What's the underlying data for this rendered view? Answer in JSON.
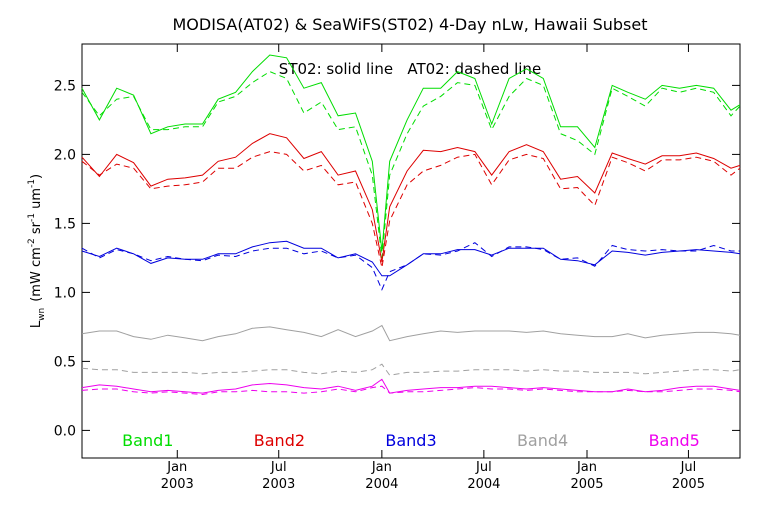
{
  "chart_data": {
    "type": "line",
    "title": "MODISA(AT02) & SeaWiFS(ST02) 4-Day nLw, Hawaii Subset",
    "subtitle": "ST02: solid line   AT02: dashed line",
    "xlabel": "",
    "ylabel": "L",
    "ylabel_sub": "wn",
    "ylabel_units": "(mW cm",
    "ylabel_units_sup1": "-2",
    "ylabel_units_mid": " sr",
    "ylabel_units_sup2": "-1",
    "ylabel_units_end": " um",
    "ylabel_units_sup3": "-1",
    "ylabel_units_close": ")",
    "ylim": [
      -0.2,
      2.8
    ],
    "xlim": [
      "2002-07-15",
      "2005-10-01"
    ],
    "grid": false,
    "yticks": [
      {
        "v": 0.0,
        "label": "0.0"
      },
      {
        "v": 0.5,
        "label": "0.5"
      },
      {
        "v": 1.0,
        "label": "1.0"
      },
      {
        "v": 1.5,
        "label": "1.5"
      },
      {
        "v": 2.0,
        "label": "2.0"
      },
      {
        "v": 2.5,
        "label": "2.5"
      }
    ],
    "xticks": [
      {
        "date": "2003-01-01",
        "month": "Jan",
        "year": "2003"
      },
      {
        "date": "2003-07-01",
        "month": "Jul",
        "year": "2003"
      },
      {
        "date": "2004-01-01",
        "month": "Jan",
        "year": "2004"
      },
      {
        "date": "2004-07-01",
        "month": "Jul",
        "year": "2004"
      },
      {
        "date": "2005-01-01",
        "month": "Jan",
        "year": "2005"
      },
      {
        "date": "2005-07-01",
        "month": "Jul",
        "year": "2005"
      }
    ],
    "x": [
      "2002-07-15",
      "2002-08-15",
      "2002-09-15",
      "2002-10-15",
      "2002-11-15",
      "2002-12-15",
      "2003-01-15",
      "2003-02-15",
      "2003-03-15",
      "2003-04-15",
      "2003-05-15",
      "2003-06-15",
      "2003-07-15",
      "2003-08-15",
      "2003-09-15",
      "2003-10-15",
      "2003-11-15",
      "2003-12-15",
      "2004-01-01",
      "2004-01-15",
      "2004-02-15",
      "2004-03-15",
      "2004-04-15",
      "2004-05-15",
      "2004-06-15",
      "2004-07-15",
      "2004-08-15",
      "2004-09-15",
      "2004-10-15",
      "2004-11-15",
      "2004-12-15",
      "2005-01-15",
      "2005-02-15",
      "2005-03-15",
      "2005-04-15",
      "2005-05-15",
      "2005-06-15",
      "2005-07-15",
      "2005-08-15",
      "2005-09-15",
      "2005-10-01"
    ],
    "series": [
      {
        "name": "Band1",
        "color": "#00dd00",
        "dash": false,
        "values": [
          2.48,
          2.25,
          2.48,
          2.43,
          2.15,
          2.2,
          2.22,
          2.22,
          2.4,
          2.45,
          2.6,
          2.72,
          2.7,
          2.48,
          2.52,
          2.28,
          2.3,
          1.95,
          1.3,
          1.95,
          2.25,
          2.48,
          2.48,
          2.6,
          2.55,
          2.22,
          2.55,
          2.62,
          2.55,
          2.2,
          2.2,
          2.05,
          2.5,
          2.45,
          2.4,
          2.5,
          2.48,
          2.5,
          2.48,
          2.32,
          2.36
        ]
      },
      {
        "name": "Band1",
        "color": "#00dd00",
        "dash": true,
        "values": [
          2.45,
          2.28,
          2.4,
          2.42,
          2.18,
          2.18,
          2.2,
          2.2,
          2.38,
          2.42,
          2.52,
          2.6,
          2.55,
          2.3,
          2.38,
          2.18,
          2.2,
          1.85,
          1.25,
          1.85,
          2.15,
          2.35,
          2.42,
          2.52,
          2.5,
          2.18,
          2.42,
          2.55,
          2.5,
          2.15,
          2.1,
          2.0,
          2.48,
          2.42,
          2.35,
          2.48,
          2.45,
          2.48,
          2.45,
          2.28,
          2.35
        ]
      },
      {
        "name": "Band2",
        "color": "#dd0000",
        "dash": false,
        "values": [
          1.98,
          1.84,
          2.0,
          1.94,
          1.77,
          1.82,
          1.83,
          1.85,
          1.95,
          1.98,
          2.08,
          2.15,
          2.12,
          1.97,
          2.02,
          1.85,
          1.88,
          1.6,
          1.22,
          1.62,
          1.88,
          2.03,
          2.02,
          2.05,
          2.02,
          1.85,
          2.02,
          2.07,
          2.02,
          1.82,
          1.84,
          1.72,
          2.01,
          1.97,
          1.93,
          1.99,
          1.99,
          2.01,
          1.97,
          1.9,
          1.92
        ]
      },
      {
        "name": "Band2",
        "color": "#dd0000",
        "dash": true,
        "values": [
          1.95,
          1.85,
          1.93,
          1.9,
          1.75,
          1.77,
          1.78,
          1.8,
          1.9,
          1.9,
          1.98,
          2.02,
          2.0,
          1.88,
          1.92,
          1.78,
          1.8,
          1.5,
          1.18,
          1.52,
          1.78,
          1.88,
          1.92,
          1.98,
          2.0,
          1.78,
          1.96,
          2.0,
          1.97,
          1.75,
          1.76,
          1.63,
          1.98,
          1.94,
          1.88,
          1.96,
          1.96,
          1.98,
          1.95,
          1.85,
          1.9
        ]
      },
      {
        "name": "Band3",
        "color": "#0000dd",
        "dash": false,
        "values": [
          1.3,
          1.26,
          1.32,
          1.28,
          1.21,
          1.25,
          1.24,
          1.24,
          1.28,
          1.28,
          1.33,
          1.36,
          1.37,
          1.32,
          1.32,
          1.25,
          1.28,
          1.22,
          1.12,
          1.12,
          1.2,
          1.28,
          1.28,
          1.31,
          1.31,
          1.27,
          1.32,
          1.32,
          1.32,
          1.24,
          1.23,
          1.2,
          1.3,
          1.29,
          1.27,
          1.29,
          1.3,
          1.31,
          1.3,
          1.29,
          1.28
        ]
      },
      {
        "name": "Band3",
        "color": "#0000dd",
        "dash": true,
        "values": [
          1.32,
          1.25,
          1.31,
          1.28,
          1.23,
          1.26,
          1.24,
          1.23,
          1.27,
          1.26,
          1.3,
          1.32,
          1.32,
          1.28,
          1.3,
          1.25,
          1.27,
          1.18,
          1.02,
          1.15,
          1.2,
          1.28,
          1.27,
          1.3,
          1.36,
          1.26,
          1.33,
          1.33,
          1.31,
          1.24,
          1.25,
          1.19,
          1.34,
          1.31,
          1.3,
          1.31,
          1.3,
          1.3,
          1.34,
          1.3,
          1.3
        ]
      },
      {
        "name": "Band4",
        "color": "#a0a0a0",
        "dash": false,
        "values": [
          0.7,
          0.72,
          0.72,
          0.68,
          0.66,
          0.69,
          0.67,
          0.65,
          0.68,
          0.7,
          0.74,
          0.75,
          0.73,
          0.71,
          0.68,
          0.73,
          0.68,
          0.72,
          0.76,
          0.65,
          0.68,
          0.7,
          0.72,
          0.71,
          0.72,
          0.72,
          0.72,
          0.71,
          0.72,
          0.7,
          0.69,
          0.68,
          0.68,
          0.7,
          0.67,
          0.69,
          0.7,
          0.71,
          0.71,
          0.7,
          0.69
        ]
      },
      {
        "name": "Band4",
        "color": "#a0a0a0",
        "dash": true,
        "values": [
          0.45,
          0.44,
          0.44,
          0.42,
          0.42,
          0.42,
          0.42,
          0.41,
          0.42,
          0.42,
          0.43,
          0.44,
          0.44,
          0.42,
          0.41,
          0.43,
          0.42,
          0.44,
          0.48,
          0.4,
          0.42,
          0.42,
          0.43,
          0.43,
          0.44,
          0.44,
          0.44,
          0.43,
          0.44,
          0.43,
          0.43,
          0.42,
          0.42,
          0.42,
          0.41,
          0.42,
          0.43,
          0.44,
          0.44,
          0.43,
          0.44
        ]
      },
      {
        "name": "Band5",
        "color": "#ee00ee",
        "dash": false,
        "values": [
          0.31,
          0.33,
          0.32,
          0.3,
          0.28,
          0.29,
          0.28,
          0.27,
          0.29,
          0.3,
          0.33,
          0.34,
          0.33,
          0.31,
          0.3,
          0.32,
          0.29,
          0.32,
          0.37,
          0.27,
          0.29,
          0.3,
          0.31,
          0.31,
          0.32,
          0.32,
          0.31,
          0.3,
          0.31,
          0.3,
          0.29,
          0.28,
          0.28,
          0.3,
          0.28,
          0.29,
          0.31,
          0.32,
          0.32,
          0.3,
          0.29
        ]
      },
      {
        "name": "Band5",
        "color": "#ee00ee",
        "dash": true,
        "values": [
          0.29,
          0.3,
          0.3,
          0.28,
          0.27,
          0.28,
          0.27,
          0.26,
          0.28,
          0.28,
          0.29,
          0.28,
          0.28,
          0.27,
          0.28,
          0.3,
          0.28,
          0.31,
          0.32,
          0.27,
          0.28,
          0.28,
          0.29,
          0.3,
          0.31,
          0.3,
          0.3,
          0.29,
          0.3,
          0.29,
          0.28,
          0.28,
          0.28,
          0.29,
          0.28,
          0.28,
          0.29,
          0.3,
          0.3,
          0.29,
          0.28
        ]
      }
    ],
    "legend": [
      {
        "label": "Band1",
        "color": "#00dd00"
      },
      {
        "label": "Band2",
        "color": "#dd0000"
      },
      {
        "label": "Band3",
        "color": "#0000dd"
      },
      {
        "label": "Band4",
        "color": "#a0a0a0"
      },
      {
        "label": "Band5",
        "color": "#ee00ee"
      }
    ],
    "legend_placement": "bottom"
  }
}
